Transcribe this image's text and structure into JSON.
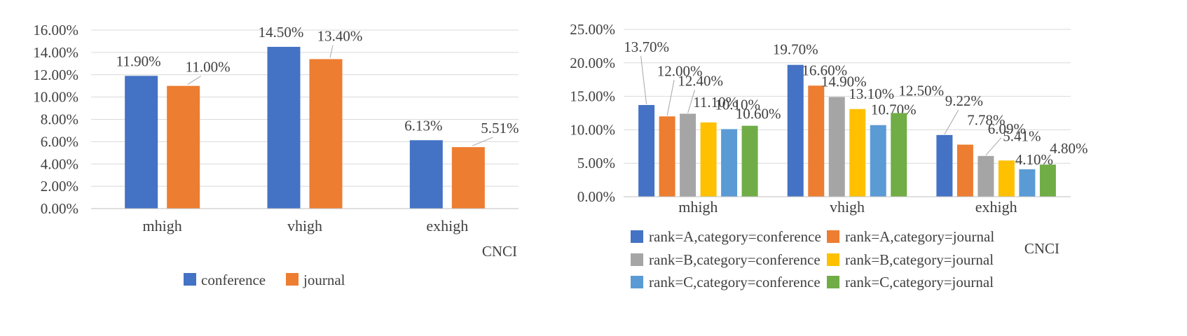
{
  "chart_data": [
    {
      "type": "bar",
      "categories": [
        "mhigh",
        "vhigh",
        "exhigh"
      ],
      "xlabel": "CNCI",
      "ylabel": "",
      "ylim": [
        0,
        0.16
      ],
      "yticks": [
        "0.00%",
        "2.00%",
        "4.00%",
        "6.00%",
        "8.00%",
        "10.00%",
        "12.00%",
        "14.00%",
        "16.00%"
      ],
      "grid": true,
      "legend": "bottom",
      "series": [
        {
          "name": "conference",
          "color": "#4472C4",
          "values": [
            0.119,
            0.145,
            0.0613
          ],
          "labels": [
            "11.90%",
            "14.50%",
            "6.13%"
          ]
        },
        {
          "name": "journal",
          "color": "#ED7D31",
          "values": [
            0.11,
            0.134,
            0.0551
          ],
          "labels": [
            "11.00%",
            "13.40%",
            "5.51%"
          ]
        }
      ]
    },
    {
      "type": "bar",
      "categories": [
        "mhigh",
        "vhigh",
        "exhigh"
      ],
      "xlabel": "CNCI",
      "ylabel": "",
      "ylim": [
        0,
        0.25
      ],
      "yticks": [
        "0.00%",
        "5.00%",
        "10.00%",
        "15.00%",
        "20.00%",
        "25.00%"
      ],
      "grid": true,
      "legend": "bottom",
      "series": [
        {
          "name": "rank=A,category=conference",
          "color": "#4472C4",
          "values": [
            0.137,
            0.197,
            0.0922
          ],
          "labels": [
            "13.70%",
            "19.70%",
            "9.22%"
          ]
        },
        {
          "name": "rank=A,category=journal",
          "color": "#ED7D31",
          "values": [
            0.12,
            0.166,
            0.0778
          ],
          "labels": [
            "12.00%",
            "16.60%",
            "7.78%"
          ]
        },
        {
          "name": "rank=B,category=conference",
          "color": "#A5A5A5",
          "values": [
            0.124,
            0.149,
            0.0609
          ],
          "labels": [
            "12.40%",
            "14.90%",
            "6.09%"
          ]
        },
        {
          "name": "rank=B,category=journal",
          "color": "#FFC000",
          "values": [
            0.111,
            0.131,
            0.0541
          ],
          "labels": [
            "11.10%",
            "13.10%",
            "5.41%"
          ]
        },
        {
          "name": "rank=C,category=conference",
          "color": "#5B9BD5",
          "values": [
            0.101,
            0.107,
            0.041
          ],
          "labels": [
            "10.10%",
            "10.70%",
            "4.10%"
          ]
        },
        {
          "name": "rank=C,category=journal",
          "color": "#70AD47",
          "values": [
            0.106,
            0.125,
            0.048
          ],
          "labels": [
            "10.60%",
            "12.50%",
            "4.80%"
          ]
        }
      ]
    }
  ]
}
